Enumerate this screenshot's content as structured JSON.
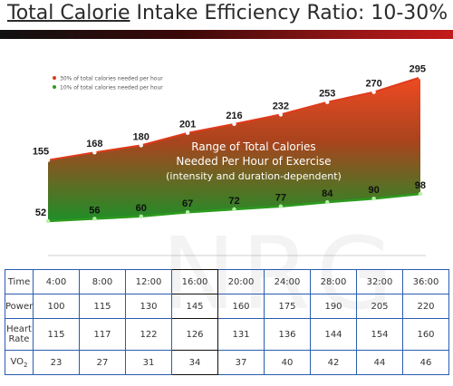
{
  "title": {
    "underlined": "Total Calorie",
    "rest": " Intake Efficiency Ratio: 10-30%"
  },
  "chart_data": {
    "type": "area",
    "series": [
      {
        "name": "30% of total calories needed per hour",
        "values": [
          155,
          168,
          180,
          201,
          216,
          232,
          253,
          270,
          295
        ],
        "color": "#e03a1c"
      },
      {
        "name": "10% of total calories needed per hour",
        "values": [
          52,
          56,
          60,
          67,
          72,
          77,
          84,
          90,
          98
        ],
        "color": "#2d9a1e"
      }
    ],
    "annotation": [
      "Range of Total Calories",
      "Needed Per Hour of Exercise",
      "(intensity and duration-dependent)"
    ],
    "legend": "top-left",
    "ylim": [
      0,
      300
    ],
    "grid": false
  },
  "table": {
    "rows": [
      {
        "label": "Time",
        "values": [
          "4:00",
          "8:00",
          "12:00",
          "16:00",
          "20:00",
          "24:00",
          "28:00",
          "32:00",
          "36:00"
        ]
      },
      {
        "label": "Power",
        "values": [
          "100",
          "115",
          "130",
          "145",
          "160",
          "175",
          "190",
          "205",
          "220"
        ]
      },
      {
        "label": "Heart Rate",
        "values": [
          "115",
          "117",
          "122",
          "126",
          "131",
          "136",
          "144",
          "154",
          "160"
        ]
      },
      {
        "label": "VO",
        "label_sub": "2",
        "values": [
          "23",
          "27",
          "31",
          "34",
          "37",
          "40",
          "42",
          "44",
          "46"
        ]
      }
    ]
  },
  "colors": {
    "grid_border": "#2a5db0",
    "bar_dark": "#111111",
    "bar_red": "#c41b1b"
  }
}
